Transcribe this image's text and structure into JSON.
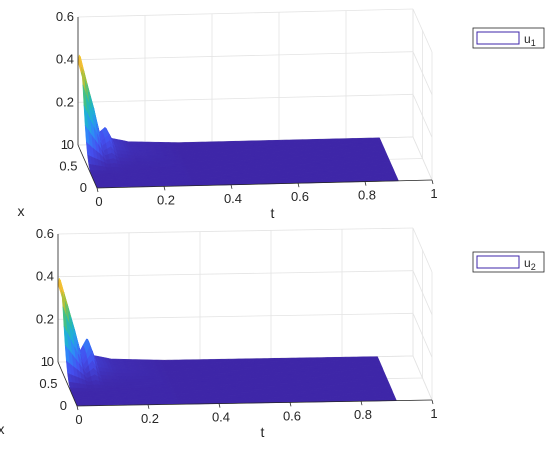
{
  "chart_data": [
    {
      "type": "surface",
      "legend": {
        "entry": "u",
        "subscript": "1",
        "placement": "outside-right"
      },
      "xlabel": "t",
      "ylabel": "x",
      "zlabel": "",
      "xlim": [
        0,
        1
      ],
      "ylim": [
        0,
        1
      ],
      "zlim": [
        0,
        0.6
      ],
      "x_ticks": [
        "0",
        "0.2",
        "0.4",
        "0.6",
        "0.8",
        "1"
      ],
      "y_ticks": [
        "0",
        "0.5",
        "1"
      ],
      "z_ticks": [
        "0",
        "0.2",
        "0.4",
        "0.6"
      ],
      "grid": true,
      "colormap": [
        "#3e26a8",
        "#4450f0",
        "#2f89f9",
        "#1fb1d5",
        "#2fc097",
        "#93c23e",
        "#f2bb37",
        "#f9fb15"
      ],
      "t_extent": [
        0,
        0.9
      ],
      "peak": {
        "t": 0,
        "x": 0.9,
        "value": 0.45
      },
      "surface_profile": [
        {
          "t": 0.0,
          "max_u": 0.45
        },
        {
          "t": 0.02,
          "max_u": 0.32
        },
        {
          "t": 0.04,
          "max_u": 0.2
        },
        {
          "t": 0.06,
          "max_u": 0.06
        },
        {
          "t": 0.08,
          "max_u": 0.09
        },
        {
          "t": 0.1,
          "max_u": 0.03
        },
        {
          "t": 0.15,
          "max_u": 0.01
        },
        {
          "t": 0.3,
          "max_u": 0.0
        },
        {
          "t": 0.9,
          "max_u": 0.0
        }
      ]
    },
    {
      "type": "surface",
      "legend": {
        "entry": "u",
        "subscript": "2",
        "placement": "outside-right"
      },
      "xlabel": "t",
      "ylabel": "x",
      "zlabel": "",
      "xlim": [
        0,
        1
      ],
      "ylim": [
        0,
        1
      ],
      "zlim": [
        0,
        0.6
      ],
      "x_ticks": [
        "0",
        "0.2",
        "0.4",
        "0.6",
        "0.8",
        "1"
      ],
      "y_ticks": [
        "0",
        "0.5",
        "1"
      ],
      "z_ticks": [
        "0",
        "0.2",
        "0.4",
        "0.6"
      ],
      "grid": true,
      "colormap": [
        "#3e26a8",
        "#4450f0",
        "#2f89f9",
        "#1fb1d5",
        "#2fc097",
        "#93c23e",
        "#f2bb37",
        "#f9fb15"
      ],
      "t_extent": [
        0,
        0.9
      ],
      "peak": {
        "t": 0,
        "x": 0.9,
        "value": 0.42
      },
      "surface_profile": [
        {
          "t": 0.0,
          "max_u": 0.42
        },
        {
          "t": 0.02,
          "max_u": 0.3
        },
        {
          "t": 0.04,
          "max_u": 0.18
        },
        {
          "t": 0.06,
          "max_u": 0.05
        },
        {
          "t": 0.08,
          "max_u": 0.12
        },
        {
          "t": 0.1,
          "max_u": 0.03
        },
        {
          "t": 0.15,
          "max_u": 0.01
        },
        {
          "t": 0.3,
          "max_u": 0.0
        },
        {
          "t": 0.9,
          "max_u": 0.0
        }
      ]
    }
  ]
}
